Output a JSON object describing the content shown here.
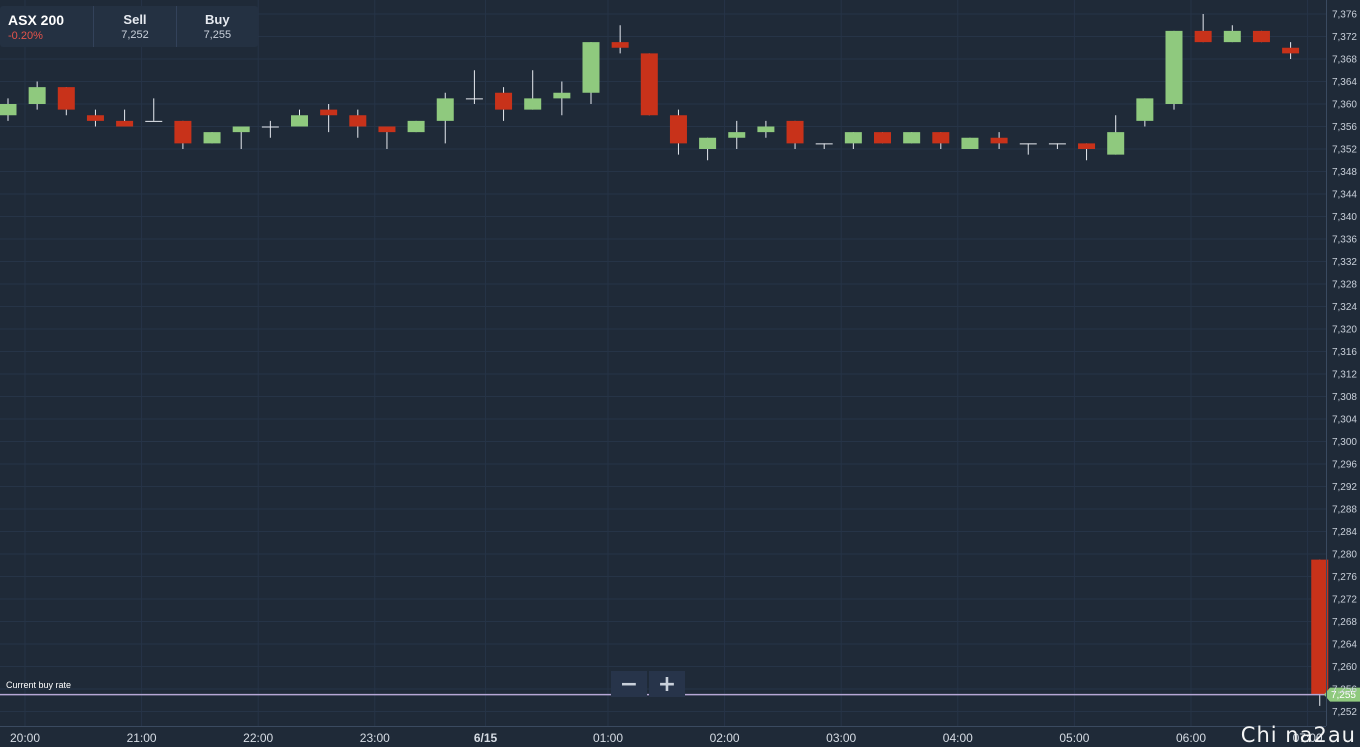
{
  "header": {
    "instrument": "ASX 200",
    "change": "-0.20%",
    "sell_label": "Sell",
    "sell_value": "7,252",
    "buy_label": "Buy",
    "buy_value": "7,255"
  },
  "current_rate_label": "Current buy rate",
  "zoom": {
    "minus": "−",
    "plus": "+"
  },
  "watermark": "Chi na2au",
  "colors": {
    "background": "#1f2a38",
    "up": "#8fc97e",
    "down": "#c8321a",
    "rate_line": "#b6a7d4",
    "rate_tag": "#8fc97e"
  },
  "chart_data": {
    "type": "candlestick",
    "ylim": [
      7250,
      7378
    ],
    "y_ticks": [
      7252,
      7256,
      7260,
      7264,
      7268,
      7272,
      7276,
      7280,
      7284,
      7288,
      7292,
      7296,
      7300,
      7304,
      7308,
      7312,
      7316,
      7320,
      7324,
      7328,
      7332,
      7336,
      7340,
      7344,
      7348,
      7352,
      7356,
      7360,
      7364,
      7368,
      7372,
      7376
    ],
    "y_tick_labels": [
      "7,252",
      "7,256",
      "7,260",
      "7,264",
      "7,268",
      "7,272",
      "7,276",
      "7,280",
      "7,284",
      "7,288",
      "7,292",
      "7,296",
      "7,300",
      "7,304",
      "7,308",
      "7,312",
      "7,316",
      "7,320",
      "7,324",
      "7,328",
      "7,332",
      "7,336",
      "7,340",
      "7,344",
      "7,348",
      "7,352",
      "7,356",
      "7,360",
      "7,364",
      "7,368",
      "7,372",
      "7,376"
    ],
    "x_ticks": [
      {
        "label": "20:00",
        "slot": 0.6
      },
      {
        "label": "21:00",
        "slot": 4.6
      },
      {
        "label": "22:00",
        "slot": 8.6
      },
      {
        "label": "23:00",
        "slot": 12.6
      },
      {
        "label": "6/15",
        "slot": 16.4,
        "bold": true
      },
      {
        "label": "01:00",
        "slot": 20.6
      },
      {
        "label": "02:00",
        "slot": 24.6
      },
      {
        "label": "03:00",
        "slot": 28.6
      },
      {
        "label": "04:00",
        "slot": 32.6
      },
      {
        "label": "05:00",
        "slot": 36.6
      },
      {
        "label": "06:00",
        "slot": 40.6
      },
      {
        "label": "07:00",
        "slot": 44.6
      }
    ],
    "candles": [
      {
        "o": 7358,
        "h": 7361,
        "l": 7357,
        "c": 7360
      },
      {
        "o": 7360,
        "h": 7364,
        "l": 7359,
        "c": 7363
      },
      {
        "o": 7363,
        "h": 7363,
        "l": 7358,
        "c": 7359
      },
      {
        "o": 7358,
        "h": 7359,
        "l": 7356,
        "c": 7357
      },
      {
        "o": 7357,
        "h": 7359,
        "l": 7356,
        "c": 7356
      },
      {
        "o": 7357,
        "h": 7361,
        "l": 7357,
        "c": 7357
      },
      {
        "o": 7357,
        "h": 7357,
        "l": 7352,
        "c": 7353
      },
      {
        "o": 7353,
        "h": 7355,
        "l": 7353,
        "c": 7355
      },
      {
        "o": 7355,
        "h": 7356,
        "l": 7352,
        "c": 7356
      },
      {
        "o": 7356,
        "h": 7357,
        "l": 7354,
        "c": 7356
      },
      {
        "o": 7356,
        "h": 7359,
        "l": 7356,
        "c": 7358
      },
      {
        "o": 7359,
        "h": 7360,
        "l": 7355,
        "c": 7358
      },
      {
        "o": 7358,
        "h": 7359,
        "l": 7354,
        "c": 7356
      },
      {
        "o": 7356,
        "h": 7356,
        "l": 7352,
        "c": 7355
      },
      {
        "o": 7355,
        "h": 7357,
        "l": 7355,
        "c": 7357
      },
      {
        "o": 7357,
        "h": 7362,
        "l": 7353,
        "c": 7361
      },
      {
        "o": 7361,
        "h": 7366,
        "l": 7360,
        "c": 7361
      },
      {
        "o": 7362,
        "h": 7363,
        "l": 7357,
        "c": 7359
      },
      {
        "o": 7359,
        "h": 7366,
        "l": 7359,
        "c": 7361
      },
      {
        "o": 7361,
        "h": 7364,
        "l": 7358,
        "c": 7362
      },
      {
        "o": 7362,
        "h": 7371,
        "l": 7360,
        "c": 7371
      },
      {
        "o": 7371,
        "h": 7374,
        "l": 7369,
        "c": 7370
      },
      {
        "o": 7369,
        "h": 7369,
        "l": 7358,
        "c": 7358
      },
      {
        "o": 7358,
        "h": 7359,
        "l": 7351,
        "c": 7353
      },
      {
        "o": 7352,
        "h": 7354,
        "l": 7350,
        "c": 7354
      },
      {
        "o": 7354,
        "h": 7357,
        "l": 7352,
        "c": 7355
      },
      {
        "o": 7355,
        "h": 7357,
        "l": 7354,
        "c": 7356
      },
      {
        "o": 7357,
        "h": 7357,
        "l": 7352,
        "c": 7353
      },
      {
        "o": 7353,
        "h": 7353,
        "l": 7352,
        "c": 7353
      },
      {
        "o": 7353,
        "h": 7355,
        "l": 7352,
        "c": 7355
      },
      {
        "o": 7355,
        "h": 7355,
        "l": 7353,
        "c": 7353
      },
      {
        "o": 7353,
        "h": 7355,
        "l": 7353,
        "c": 7355
      },
      {
        "o": 7355,
        "h": 7355,
        "l": 7352,
        "c": 7353
      },
      {
        "o": 7352,
        "h": 7354,
        "l": 7352,
        "c": 7354
      },
      {
        "o": 7354,
        "h": 7355,
        "l": 7352,
        "c": 7353
      },
      {
        "o": 7353,
        "h": 7353,
        "l": 7351,
        "c": 7353
      },
      {
        "o": 7353,
        "h": 7353,
        "l": 7352,
        "c": 7353
      },
      {
        "o": 7353,
        "h": 7353,
        "l": 7350,
        "c": 7352
      },
      {
        "o": 7351,
        "h": 7358,
        "l": 7351,
        "c": 7355
      },
      {
        "o": 7357,
        "h": 7361,
        "l": 7356,
        "c": 7361
      },
      {
        "o": 7360,
        "h": 7373,
        "l": 7359,
        "c": 7373
      },
      {
        "o": 7373,
        "h": 7376,
        "l": 7371,
        "c": 7371
      },
      {
        "o": 7371,
        "h": 7374,
        "l": 7371,
        "c": 7373
      },
      {
        "o": 7373,
        "h": 7373,
        "l": 7371,
        "c": 7371
      },
      {
        "o": 7370,
        "h": 7371,
        "l": 7368,
        "c": 7369
      },
      {
        "o": 7279,
        "h": 7279,
        "l": 7253,
        "c": 7255
      }
    ],
    "current_rate": 7255,
    "current_rate_label": "7,255"
  }
}
